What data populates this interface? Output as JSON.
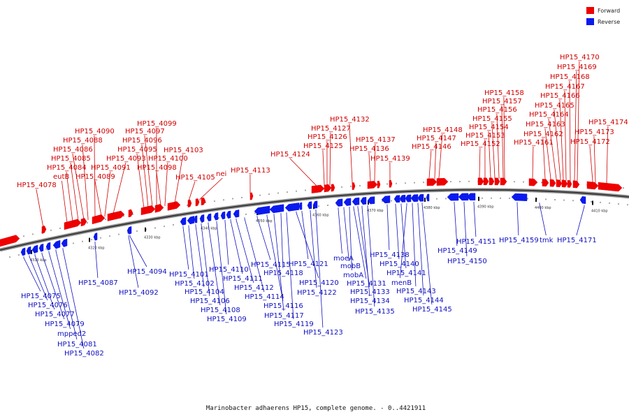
{
  "legend": [
    {
      "label": "Forward",
      "color": "#ee0000"
    },
    {
      "label": "Reverse",
      "color": "#0a1aee"
    }
  ],
  "caption": "Marinobacter adhaerens HP15, complete genome. - 0..4421911",
  "ticks": [
    "4310 kbp",
    "4320 kbp",
    "4330 kbp",
    "4340 kbp",
    "4350 kbp",
    "4360 kbp",
    "4370 kbp",
    "4380 kbp",
    "4390 kbp",
    "4400 kbp",
    "4410 kbp"
  ],
  "forward_genes": [
    "HP15_4078",
    "eutB",
    "HP15_4084",
    "HP15_4085",
    "HP15_4086",
    "HP15_4088",
    "HP15_4090",
    "HP15_4089",
    "HP15_4091",
    "HP15_4093",
    "HP15_4095",
    "HP15_4096",
    "HP15_4097",
    "HP15_4099",
    "HP15_4098",
    "HP15_4100",
    "HP15_4103",
    "HP15_4105",
    "nei",
    "HP15_4113",
    "HP15_4124",
    "HP15_4125",
    "HP15_4126",
    "HP15_4127",
    "HP15_4132",
    "HP15_4136",
    "HP15_4137",
    "HP15_4139",
    "HP15_4146",
    "HP15_4147",
    "HP15_4148",
    "HP15_4152",
    "HP15_4153",
    "HP15_4154",
    "HP15_4155",
    "HP15_4156",
    "HP15_4157",
    "HP15_4158",
    "HP15_4161",
    "HP15_4162",
    "HP15_4163",
    "HP15_4164",
    "HP15_4165",
    "HP15_4166",
    "HP15_4167",
    "HP15_4168",
    "HP15_4169",
    "HP15_4170",
    "HP15_4172",
    "HP15_4173",
    "HP15_4174"
  ],
  "reverse_genes": [
    "HP15_4075",
    "HP15_4076",
    "HP15_4077",
    "HP15_4079",
    "mpped2",
    "HP15_4081",
    "HP15_4082",
    "HP15_4087",
    "HP15_4094",
    "HP15_4092",
    "HP15_4101",
    "HP15_4102",
    "HP15_4104",
    "HP15_4106",
    "HP15_4108",
    "HP15_4109",
    "HP15_4110",
    "HP15_4111",
    "HP15_4112",
    "HP15_4114",
    "HP15_4115",
    "HP15_4116",
    "HP15_4117",
    "HP15_4118",
    "HP15_4119",
    "HP15_4120",
    "HP15_4121",
    "HP15_4122",
    "HP15_4123",
    "moeA",
    "mobB",
    "mobA",
    "HP15_4131",
    "HP15_4133",
    "HP15_4134",
    "HP15_4135",
    "HP15_4138",
    "HP15_4140",
    "HP15_4141",
    "menB",
    "HP15_4143",
    "HP15_4144",
    "HP15_4145",
    "HP15_4149",
    "HP15_4150",
    "HP15_4151",
    "HP15_4159",
    "tmk",
    "HP15_4171"
  ]
}
